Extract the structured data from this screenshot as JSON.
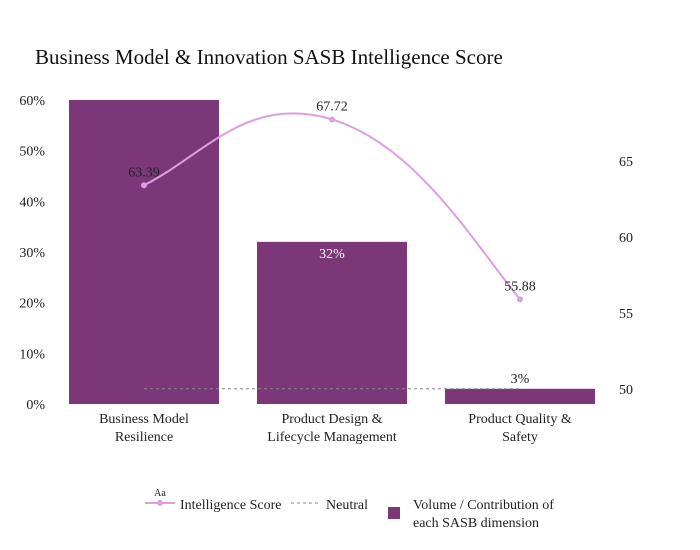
{
  "chart_data": {
    "type": "bar",
    "title": "Business Model & Innovation SASB Intelligence Score",
    "categories": [
      [
        "Business Model",
        "Resilience"
      ],
      [
        "Product Design &",
        "Lifecycle Management"
      ],
      [
        "Product Quality &",
        "Safety"
      ]
    ],
    "bars": {
      "name": [
        "Volume / Contribution of",
        "each SASB dimension"
      ],
      "values": [
        60,
        32,
        3
      ],
      "labels": [
        "",
        "32%",
        "3%"
      ],
      "color": "#7b3777"
    },
    "line": {
      "name": "Intelligence Score",
      "values": [
        63.39,
        67.72,
        55.88
      ],
      "labels": [
        "63.39",
        "67.72",
        "55.88"
      ],
      "color": "#dc9fe0",
      "legend_marker_text": "Aa"
    },
    "neutral": {
      "name": "Neutral",
      "value": 50,
      "color": "#888888"
    },
    "y_left": {
      "ylim": [
        0,
        60
      ],
      "ticks": [
        0,
        10,
        20,
        30,
        40,
        50,
        60
      ],
      "tick_labels": [
        "0%",
        "10%",
        "20%",
        "30%",
        "40%",
        "50%",
        "60%"
      ]
    },
    "y_right": {
      "ylim": [
        49,
        69
      ],
      "ticks": [
        50,
        55,
        60,
        65
      ],
      "tick_labels": [
        "50",
        "55",
        "60",
        "65"
      ]
    },
    "grid": false,
    "legend_position": "bottom"
  }
}
